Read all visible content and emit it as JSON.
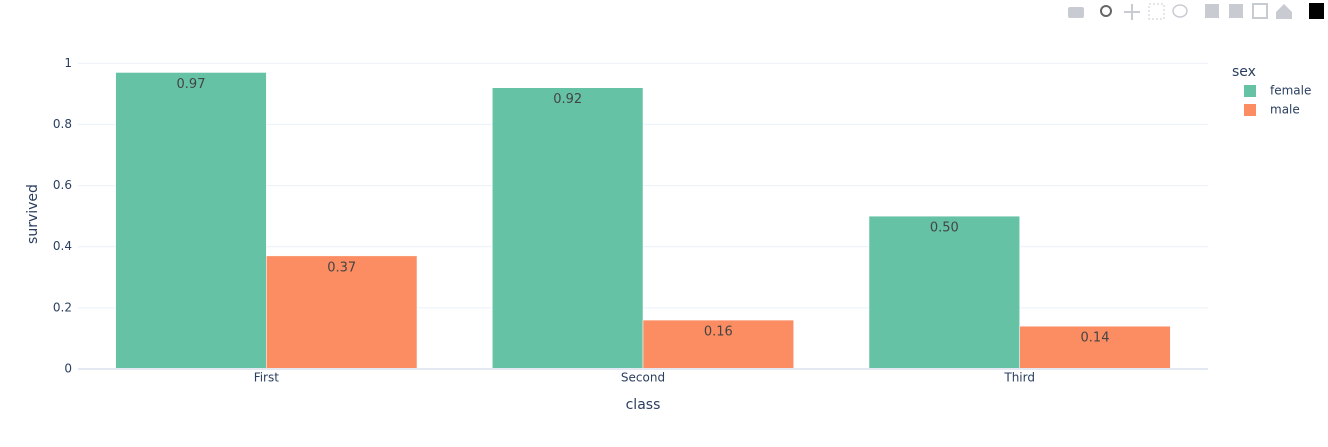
{
  "chart_data": {
    "type": "bar",
    "x_label": "class",
    "y_label": "survived",
    "categories": [
      "First",
      "Second",
      "Third"
    ],
    "series": [
      {
        "name": "female",
        "color": "#66c2a5",
        "values": [
          0.97,
          0.92,
          0.5
        ],
        "value_labels": [
          "0.97",
          "0.92",
          "0.50"
        ]
      },
      {
        "name": "male",
        "color": "#fc8d62",
        "values": [
          0.37,
          0.16,
          0.14
        ],
        "value_labels": [
          "0.37",
          "0.16",
          "0.14"
        ]
      }
    ],
    "legend_title": "sex",
    "legend": "right",
    "ylim": [
      0,
      1.05
    ],
    "yticks": [
      0,
      0.2,
      0.4,
      0.6,
      0.8,
      1
    ],
    "grid": true
  }
}
